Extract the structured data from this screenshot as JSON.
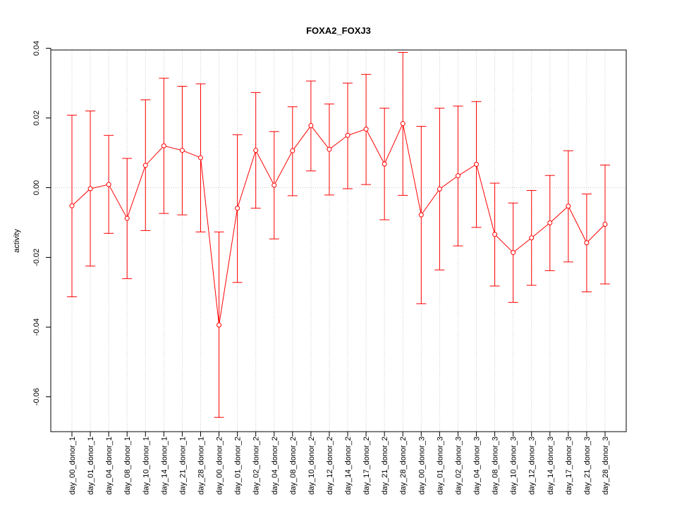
{
  "chart_data": {
    "type": "line",
    "title": "FOXA2_FOXJ3",
    "xlabel": "",
    "ylabel": "activity",
    "ylim": [
      -0.07,
      0.0395
    ],
    "yticks": [
      -0.06,
      -0.04,
      -0.02,
      0.0,
      0.02,
      0.04
    ],
    "ytick_labels": [
      "-0.06",
      "-0.04",
      "-0.02",
      "0.00",
      "0.02",
      "0.04"
    ],
    "grid": true,
    "series_color": "#ff0000",
    "categories": [
      "day_00_donor_1",
      "day_01_donor_1",
      "day_04_donor_1",
      "day_08_donor_1",
      "day_10_donor_1",
      "day_14_donor_1",
      "day_21_donor_1",
      "day_28_donor_1",
      "day_00_donor_2",
      "day_01_donor_2",
      "day_02_donor_2",
      "day_04_donor_2",
      "day_08_donor_2",
      "day_10_donor_2",
      "day_12_donor_2",
      "day_14_donor_2",
      "day_17_donor_2",
      "day_21_donor_2",
      "day_28_donor_2",
      "day_00_donor_3",
      "day_01_donor_3",
      "day_02_donor_3",
      "day_04_donor_3",
      "day_08_donor_3",
      "day_10_donor_3",
      "day_12_donor_3",
      "day_14_donor_3",
      "day_17_donor_3",
      "day_21_donor_3",
      "day_28_donor_3"
    ],
    "series": [
      {
        "values": [
          -0.0052,
          -0.0003,
          0.0009,
          -0.0088,
          0.0064,
          0.012,
          0.0107,
          0.0086,
          -0.0394,
          -0.0059,
          0.0107,
          0.0007,
          0.0106,
          0.0178,
          0.011,
          0.015,
          0.0168,
          0.0068,
          0.0184,
          -0.0078,
          -0.0004,
          0.0034,
          0.0067,
          -0.0134,
          -0.0186,
          -0.0144,
          -0.0101,
          -0.0053,
          -0.0158,
          -0.0105
        ],
        "upper": [
          0.0208,
          0.022,
          0.015,
          0.0084,
          0.0252,
          0.0314,
          0.0291,
          0.0298,
          -0.0127,
          0.0152,
          0.0273,
          0.0161,
          0.0232,
          0.0306,
          0.024,
          0.03,
          0.0325,
          0.0228,
          0.0388,
          0.0176,
          0.0228,
          0.0234,
          0.0247,
          0.0013,
          -0.0044,
          -0.0008,
          0.0035,
          0.0106,
          -0.0018,
          0.0065
        ],
        "lower": [
          -0.0313,
          -0.0225,
          -0.0131,
          -0.0261,
          -0.0123,
          -0.0074,
          -0.0078,
          -0.0127,
          -0.0659,
          -0.0272,
          -0.0059,
          -0.0147,
          -0.0023,
          0.0048,
          -0.0021,
          -0.0003,
          0.0009,
          -0.0092,
          -0.0022,
          -0.0333,
          -0.0236,
          -0.0167,
          -0.0114,
          -0.0282,
          -0.0329,
          -0.028,
          -0.0238,
          -0.0213,
          -0.0299,
          -0.0276
        ]
      }
    ]
  }
}
